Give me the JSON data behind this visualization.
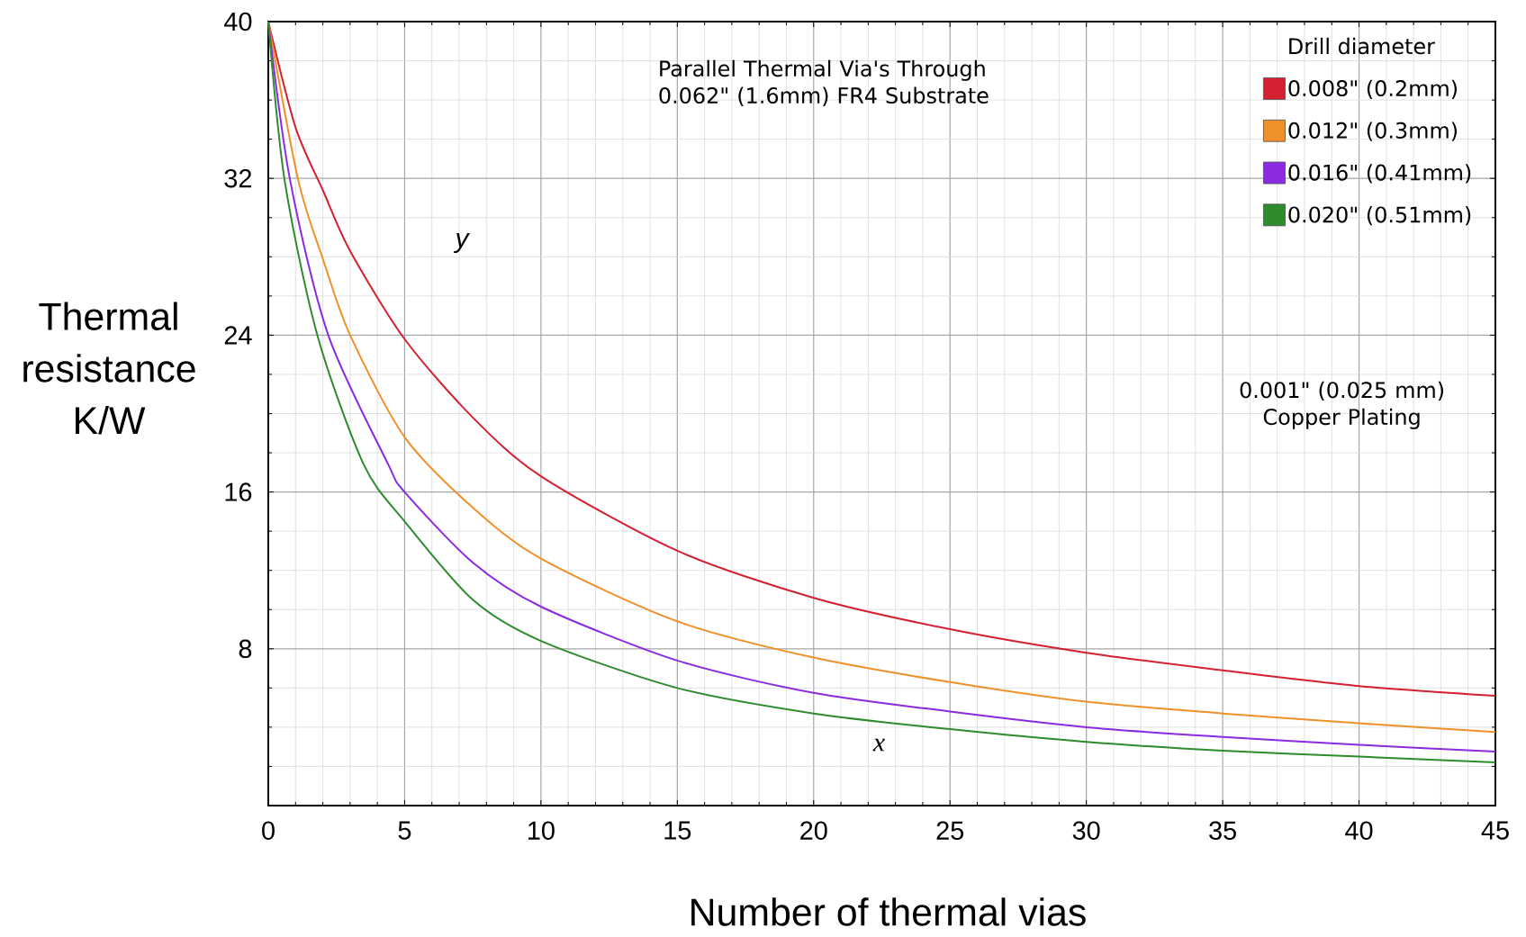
{
  "chart_data": {
    "type": "line",
    "xlabel": "Number of thermal vias",
    "ylabel": "Thermal resistance K/W",
    "legend_title": "Drill diameter",
    "annotations": [
      "Parallel Thermal Via's Through 0.062\" (1.6mm) FR4 Substrate",
      "0.001\" (0.025 mm) Copper Plating",
      "y",
      "x"
    ],
    "xlim": [
      0,
      45
    ],
    "ylim": [
      0,
      40
    ],
    "xticks": [
      0,
      5,
      10,
      15,
      20,
      25,
      30,
      35,
      40,
      45
    ],
    "yticks": [
      {
        "value": 0,
        "label": null
      },
      8,
      16,
      24,
      32,
      40
    ],
    "grid": true,
    "legend": "top right",
    "series": [
      {
        "name": "0.008\" (0.2mm)",
        "color": "#d42030",
        "x": [
          0,
          1,
          2,
          3,
          5,
          7.5,
          10,
          15,
          20,
          25,
          30,
          35,
          40,
          45
        ],
        "values": [
          40,
          34.6,
          31.4,
          28.3,
          23.8,
          19.8,
          16.8,
          13.0,
          10.6,
          9.0,
          7.8,
          6.9,
          6.1,
          5.6
        ]
      },
      {
        "name": "0.012\" (0.3mm)",
        "color": "#f0902a",
        "x": [
          0,
          1.1,
          2,
          3,
          5,
          7.5,
          10,
          15,
          20,
          25,
          30,
          35,
          40,
          45
        ],
        "values": [
          40,
          31.9,
          27.9,
          24,
          18.8,
          15.2,
          12.6,
          9.4,
          7.55,
          6.3,
          5.3,
          4.7,
          4.2,
          3.75
        ]
      },
      {
        "name": "0.016\" (0.41mm)",
        "color": "#8a2be2",
        "x": [
          0,
          0.8,
          2.2,
          4.4,
          5,
          7.5,
          10,
          15,
          20,
          25,
          30,
          35,
          40,
          45
        ],
        "values": [
          40,
          31.9,
          24,
          17.4,
          16.0,
          12.4,
          10.15,
          7.4,
          5.75,
          4.8,
          4.0,
          3.5,
          3.1,
          2.75
        ]
      },
      {
        "name": "0.020\" (0.51mm)",
        "color": "#2e8b2e",
        "x": [
          0,
          0.6,
          1.8,
          3.5,
          5,
          7.5,
          10,
          15,
          20,
          25,
          30,
          35,
          40,
          45
        ],
        "values": [
          40,
          31.9,
          24,
          17.4,
          14.5,
          10.5,
          8.4,
          6.0,
          4.7,
          3.9,
          3.25,
          2.8,
          2.5,
          2.2
        ]
      }
    ]
  }
}
